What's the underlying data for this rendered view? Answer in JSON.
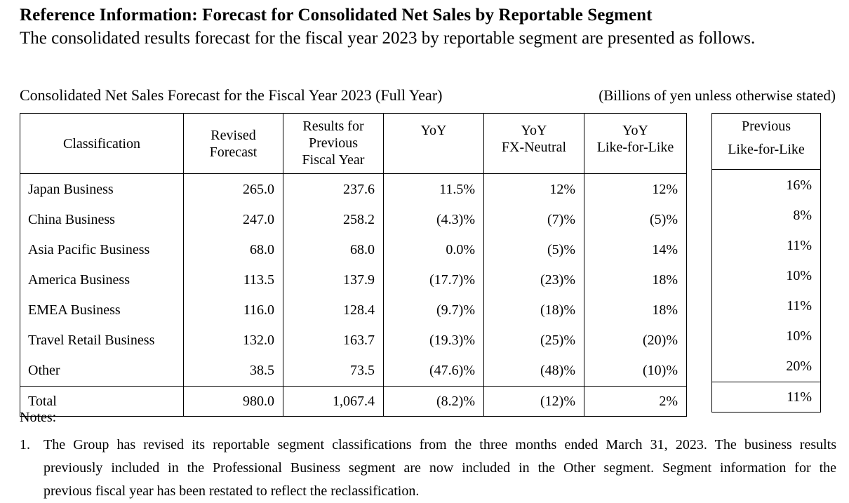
{
  "title": "Reference Information: Forecast for Consolidated Net Sales by Reportable Segment",
  "subtitle": "The consolidated results forecast for the fiscal year 2023 by reportable segment are presented as follows.",
  "table_caption": "Consolidated Net Sales Forecast for the Fiscal Year 2023 (Full Year)",
  "unit_note": "(Billions of yen unless otherwise stated)",
  "headers": {
    "classification": "Classification",
    "revised_forecast": [
      "Revised",
      "Forecast"
    ],
    "previous_results": [
      "Results for",
      "Previous",
      "Fiscal Year"
    ],
    "yoy": "YoY",
    "yoy_fx": [
      "YoY",
      "FX-Neutral"
    ],
    "yoy_lfl": [
      "YoY",
      "Like-for-Like"
    ],
    "prev_lfl": [
      "Previous",
      "Like-for-Like"
    ]
  },
  "rows": [
    {
      "name": "Japan Business",
      "revised": "265.0",
      "previous": "237.6",
      "yoy": "11.5%",
      "fx": "12%",
      "lfl": "12%",
      "prev_lfl": "16%"
    },
    {
      "name": "China Business",
      "revised": "247.0",
      "previous": "258.2",
      "yoy": "(4.3)%",
      "fx": "(7)%",
      "lfl": "(5)%",
      "prev_lfl": "8%"
    },
    {
      "name": "Asia Pacific Business",
      "revised": "68.0",
      "previous": "68.0",
      "yoy": "0.0%",
      "fx": "(5)%",
      "lfl": "14%",
      "prev_lfl": "11%"
    },
    {
      "name": "America Business",
      "revised": "113.5",
      "previous": "137.9",
      "yoy": "(17.7)%",
      "fx": "(23)%",
      "lfl": "18%",
      "prev_lfl": "10%"
    },
    {
      "name": "EMEA Business",
      "revised": "116.0",
      "previous": "128.4",
      "yoy": "(9.7)%",
      "fx": "(18)%",
      "lfl": "18%",
      "prev_lfl": "11%"
    },
    {
      "name": "Travel Retail Business",
      "revised": "132.0",
      "previous": "163.7",
      "yoy": "(19.3)%",
      "fx": "(25)%",
      "lfl": "(20)%",
      "prev_lfl": "10%"
    },
    {
      "name": "Other",
      "revised": "38.5",
      "previous": "73.5",
      "yoy": "(47.6)%",
      "fx": "(48)%",
      "lfl": "(10)%",
      "prev_lfl": "20%"
    }
  ],
  "total": {
    "name": "Total",
    "revised": "980.0",
    "previous": "1,067.4",
    "yoy": "(8.2)%",
    "fx": "(12)%",
    "lfl": "2%",
    "prev_lfl": "11%"
  },
  "notes_label": "Notes:",
  "note_1": {
    "number": "1.",
    "line1": "The Group has revised its reportable segment classifications from the three months ended March 31, 2023. The business results",
    "line2": "previously included in the Professional Business segment are now included in the Other segment. Segment information for the",
    "line3": "previous fiscal year has been restated to reflect the reclassification."
  }
}
